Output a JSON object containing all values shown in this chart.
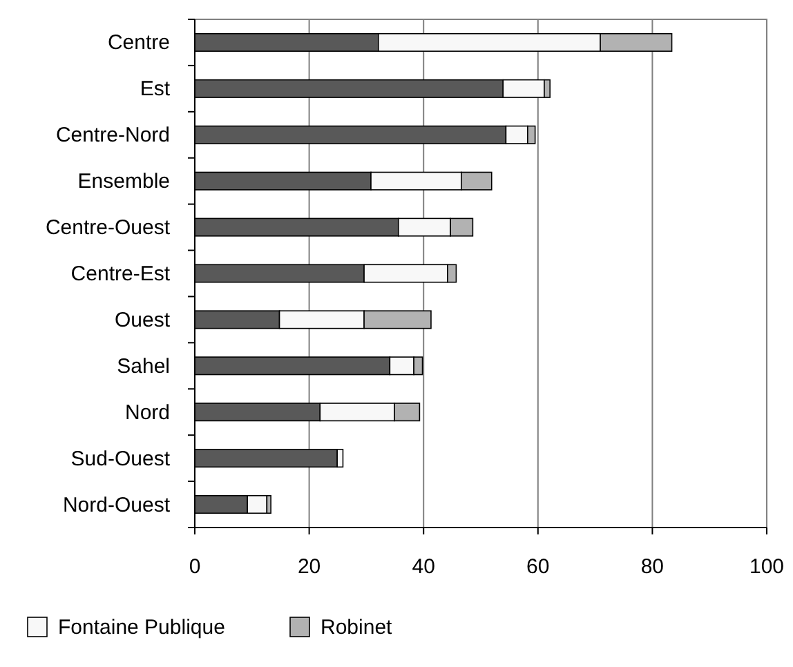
{
  "chart_data": {
    "type": "bar",
    "orientation": "horizontal",
    "stacked": true,
    "categories": [
      "Centre",
      "Est",
      "Centre-Nord",
      "Ensemble",
      "Centre-Ouest",
      "Centre-Est",
      "Ouest",
      "Sahel",
      "Nord",
      "Sud-Ouest",
      "Nord-Ouest"
    ],
    "series": [
      {
        "color": "#595959",
        "values": [
          32.1,
          53.9,
          54.4,
          30.8,
          35.6,
          29.6,
          14.8,
          34.1,
          21.9,
          24.9,
          9.2
        ]
      },
      {
        "name": "Fontaine Publique",
        "color": "#f8f8f8",
        "values": [
          38.8,
          7.2,
          3.8,
          15.8,
          9.1,
          14.6,
          14.8,
          4.2,
          13.0,
          1.0,
          3.4
        ]
      },
      {
        "name": "Robinet",
        "color": "#b2b2b2",
        "values": [
          12.5,
          1.0,
          1.3,
          5.3,
          3.9,
          1.5,
          11.7,
          1.5,
          4.4,
          0,
          0.7
        ]
      }
    ],
    "xlim": [
      0,
      100
    ],
    "xticks": [
      0,
      20,
      40,
      60,
      80,
      100
    ],
    "grid": "x",
    "legend": "bottom"
  }
}
